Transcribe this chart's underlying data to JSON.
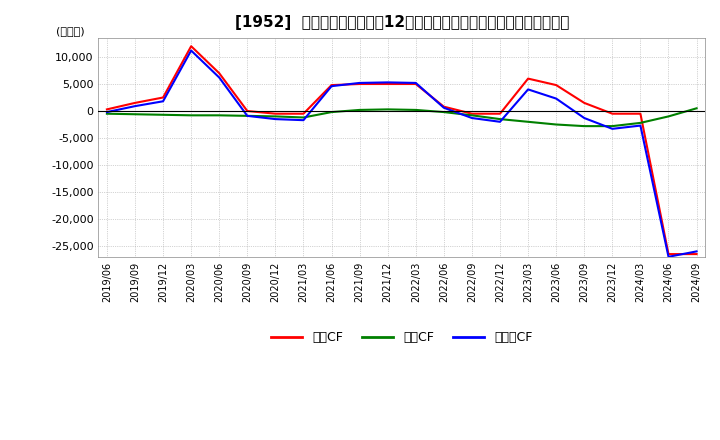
{
  "title": "[1952]  キャッシュフローの12か月移動合計の対前年同期増減額の推移",
  "ylabel": "(百万円)",
  "ylim": [
    -27000,
    13500
  ],
  "yticks": [
    -25000,
    -20000,
    -15000,
    -10000,
    -5000,
    0,
    5000,
    10000
  ],
  "legend_labels": [
    "営業CF",
    "投資CF",
    "フリーCF"
  ],
  "legend_colors": [
    "#ff0000",
    "#008000",
    "#0000ff"
  ],
  "x_labels": [
    "2019/06",
    "2019/09",
    "2019/12",
    "2020/03",
    "2020/06",
    "2020/09",
    "2020/12",
    "2021/03",
    "2021/06",
    "2021/09",
    "2021/12",
    "2022/03",
    "2022/06",
    "2022/09",
    "2022/12",
    "2023/03",
    "2023/06",
    "2023/09",
    "2023/12",
    "2024/03",
    "2024/06",
    "2024/09"
  ],
  "operating_cf": [
    300,
    1500,
    2500,
    12000,
    7000,
    0,
    -500,
    -500,
    4800,
    5000,
    5000,
    5000,
    800,
    -500,
    -500,
    6000,
    4800,
    1500,
    -500,
    -500,
    -26500,
    -26500
  ],
  "investing_cf": [
    -500,
    -600,
    -700,
    -800,
    -800,
    -900,
    -1000,
    -1200,
    -200,
    200,
    300,
    200,
    -200,
    -800,
    -1500,
    -2000,
    -2500,
    -2800,
    -2800,
    -2200,
    -1000,
    500
  ],
  "free_cf": [
    -200,
    900,
    1800,
    11200,
    6200,
    -900,
    -1500,
    -1700,
    4600,
    5200,
    5300,
    5200,
    600,
    -1300,
    -2000,
    4000,
    2300,
    -1300,
    -3300,
    -2700,
    -27000,
    -26000
  ],
  "background_color": "#ffffff",
  "grid_color": "#aaaaaa",
  "title_fontsize": 11,
  "axis_fontsize": 8,
  "legend_fontsize": 9
}
